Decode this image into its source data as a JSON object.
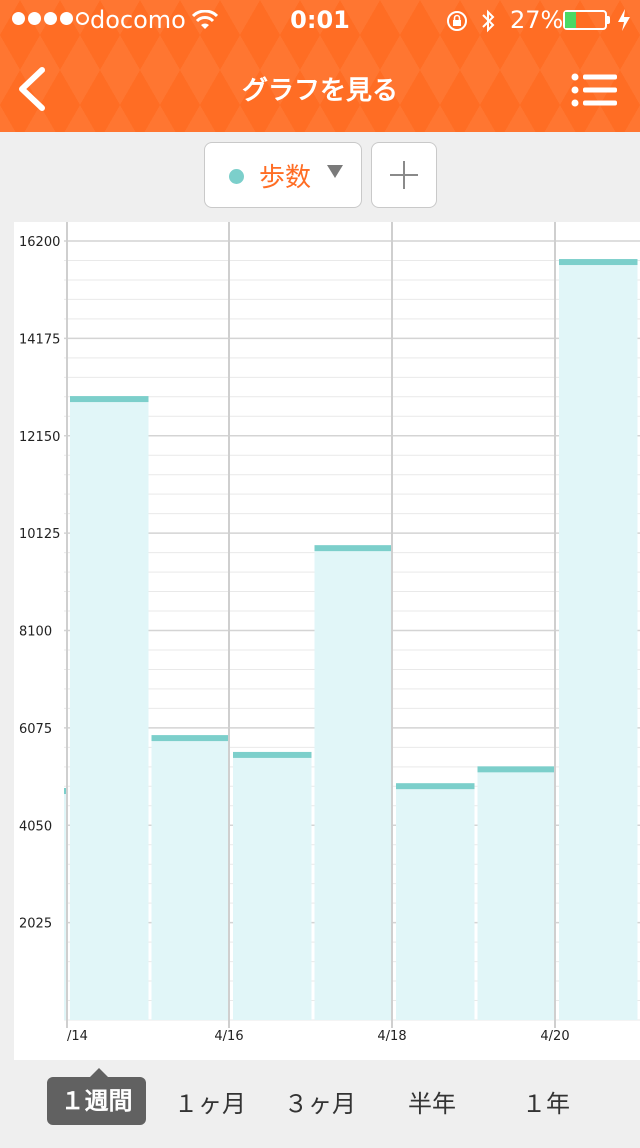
{
  "status_bar": {
    "carrier": "docomo",
    "time": "0:01",
    "battery_percent_text": "27%",
    "battery_level": 0.27
  },
  "nav": {
    "title": "グラフを見る",
    "back_icon": "chevron-left-icon",
    "menu_icon": "list-menu-icon"
  },
  "selector": {
    "metric_label": "歩数",
    "metric_color": "#7ccfcb",
    "add_label": "+"
  },
  "colors": {
    "header": "#ff6d24",
    "bar_fill": "#e1f6f8",
    "bar_top": "#7ccfcb",
    "tab_active": "#616161"
  },
  "chart_data": {
    "type": "bar",
    "title": "",
    "xlabel": "",
    "ylabel": "",
    "ylim": [
      0,
      16200
    ],
    "y_ticks": [
      2025,
      4050,
      6075,
      8100,
      10125,
      12150,
      14175,
      16200
    ],
    "x_tick_labels": [
      "/14",
      "4/16",
      "4/18",
      "4/20"
    ],
    "categories": [
      "4/13",
      "4/14",
      "4/15",
      "4/16",
      "4/17",
      "4/18",
      "4/19",
      "4/20"
    ],
    "series": [
      {
        "values": [
          4700,
          12850,
          5800,
          5450,
          9750,
          4800,
          5150,
          15700
        ]
      }
    ],
    "grid": true
  },
  "tabs": [
    {
      "label": "１週間",
      "active": true
    },
    {
      "label": "１ヶ月",
      "active": false
    },
    {
      "label": "３ヶ月",
      "active": false
    },
    {
      "label": "半年",
      "active": false
    },
    {
      "label": "１年",
      "active": false
    }
  ]
}
